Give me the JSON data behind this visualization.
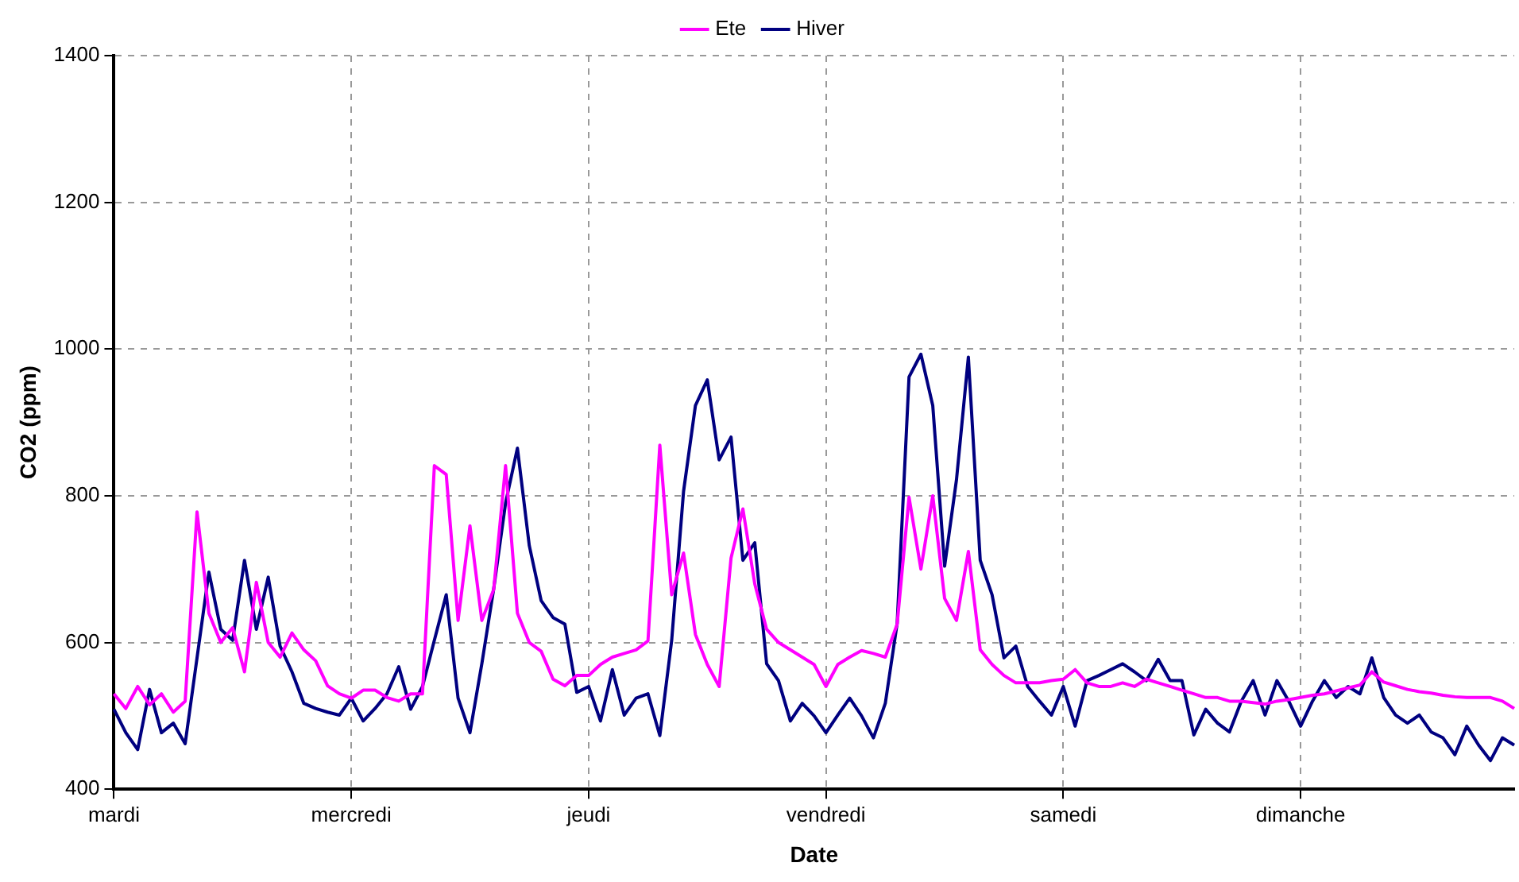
{
  "chart_data": {
    "type": "line",
    "xlabel": "Date",
    "ylabel": "CO2 (ppm)",
    "ylim": [
      400,
      1400
    ],
    "yticks": [
      400,
      600,
      800,
      1000,
      1200,
      1400
    ],
    "grid": true,
    "legend": "top",
    "marker": "none",
    "line_style": "solid",
    "categories": [
      "mardi",
      null,
      null,
      null,
      null,
      null,
      null,
      null,
      null,
      null,
      null,
      null,
      null,
      null,
      null,
      null,
      null,
      null,
      null,
      null,
      "mercredi",
      null,
      null,
      null,
      null,
      null,
      null,
      null,
      null,
      null,
      null,
      null,
      null,
      null,
      null,
      null,
      null,
      null,
      null,
      null,
      "jeudi",
      null,
      null,
      null,
      null,
      null,
      null,
      null,
      null,
      null,
      null,
      null,
      null,
      null,
      null,
      null,
      null,
      null,
      null,
      null,
      "vendredi",
      null,
      null,
      null,
      null,
      null,
      null,
      null,
      null,
      null,
      null,
      null,
      null,
      null,
      null,
      null,
      null,
      null,
      null,
      null,
      "samedi",
      null,
      null,
      null,
      null,
      null,
      null,
      null,
      null,
      null,
      null,
      null,
      null,
      null,
      null,
      null,
      null,
      null,
      null,
      null,
      "dimanche",
      null,
      null,
      null,
      null,
      null,
      null,
      null,
      null,
      null,
      null,
      null,
      null,
      null,
      null,
      null,
      null,
      null,
      null
    ],
    "series": [
      {
        "name": "Ete",
        "color": "#ff00ff",
        "values": [
          530,
          510,
          540,
          515,
          530,
          505,
          520,
          778,
          640,
          600,
          620,
          560,
          682,
          600,
          580,
          613,
          590,
          575,
          541,
          530,
          524,
          535,
          535,
          525,
          520,
          530,
          530,
          841,
          829,
          630,
          759,
          630,
          672,
          841,
          640,
          600,
          588,
          550,
          541,
          555,
          555,
          570,
          580,
          585,
          590,
          602,
          869,
          665,
          722,
          611,
          570,
          540,
          715,
          782,
          680,
          618,
          600,
          590,
          580,
          570,
          540,
          570,
          580,
          589,
          585,
          580,
          625,
          798,
          700,
          800,
          660,
          630,
          724,
          590,
          570,
          555,
          545,
          545,
          545,
          548,
          550,
          563,
          545,
          540,
          540,
          545,
          540,
          550,
          545,
          540,
          535,
          530,
          525,
          525,
          520,
          520,
          518,
          516,
          520,
          522,
          525,
          528,
          530,
          534,
          538,
          542,
          560,
          546,
          541,
          536,
          533,
          531,
          528,
          526,
          525,
          525,
          525,
          520,
          510
        ]
      },
      {
        "name": "Hiver",
        "color": "#000080",
        "values": [
          509,
          477,
          454,
          536,
          477,
          490,
          462,
          579,
          696,
          618,
          603,
          712,
          618,
          689,
          595,
          560,
          517,
          510,
          505,
          501,
          524,
          493,
          510,
          530,
          567,
          509,
          540,
          603,
          665,
          524,
          477,
          571,
          673,
          790,
          865,
          732,
          657,
          634,
          625,
          532,
          540,
          493,
          563,
          501,
          524,
          530,
          473,
          603,
          806,
          923,
          958,
          849,
          880,
          712,
          736,
          571,
          548,
          493,
          517,
          500,
          477,
          501,
          524,
          500,
          470,
          517,
          626,
          962,
          993,
          923,
          704,
          822,
          989,
          712,
          665,
          579,
          595,
          540,
          520,
          501,
          540,
          486,
          548,
          555,
          563,
          571,
          560,
          548,
          577,
          548,
          548,
          474,
          509,
          490,
          478,
          520,
          548,
          501,
          548,
          520,
          486,
          520,
          548,
          525,
          540,
          530,
          579,
          525,
          501,
          490,
          501,
          478,
          470,
          447,
          486,
          460,
          439,
          470,
          460
        ]
      }
    ]
  }
}
